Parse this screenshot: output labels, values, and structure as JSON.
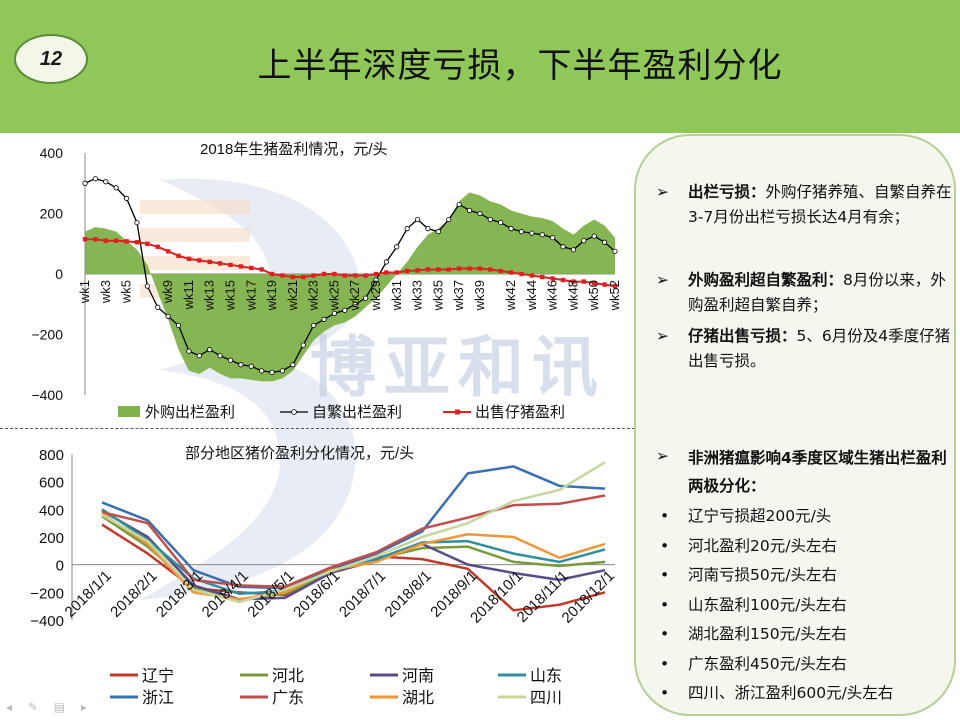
{
  "slide": {
    "page_number": "12",
    "title": "上半年深度亏损，下半年盈利分化"
  },
  "watermark": {
    "text": "博亚和讯"
  },
  "side_notes": {
    "top": [
      {
        "bold": "出栏亏损：",
        "text": "外购仔猪养殖、自繁自养在3-7月份出栏亏损长达4月有余；"
      },
      {
        "bold": "外购盈利超自繁盈利：",
        "text": "8月份以来，外购盈利超自繁自养；"
      },
      {
        "bold": "仔猪出售亏损：",
        "text": "5、6月份及4季度仔猪出售亏损。"
      }
    ],
    "bottom_header": "非洲猪瘟影响4季度区域生猪出栏盈利两极分化：",
    "bullets": [
      "辽宁亏损超200元/头",
      "河北盈利20元/头左右",
      "河南亏损50元/头左右",
      "山东盈利100元/头左右",
      "湖北盈利150元/头左右",
      "广东盈利450元/头左右",
      "四川、浙江盈利600元/头左右"
    ],
    "arrow_glyph": "➢",
    "bullet_glyph": "•"
  },
  "chart_data": [
    {
      "type": "line",
      "title": "2018年生猪盈利情况，元/头",
      "ylim": [
        -400,
        400
      ],
      "yticks": [
        400,
        200,
        0,
        -200,
        -400
      ],
      "x_labels": [
        "wk1",
        "wk3",
        "wk5",
        "wk9",
        "wk11",
        "wk13",
        "wk15",
        "wk17",
        "wk19",
        "wk21",
        "wk23",
        "wk25",
        "wk27",
        "wk29",
        "wk31",
        "wk33",
        "wk35",
        "wk37",
        "wk39",
        "wk42",
        "wk44",
        "wk46",
        "wk48",
        "wk50",
        "wk52"
      ],
      "x_labels_week": [
        1,
        3,
        5,
        9,
        11,
        13,
        15,
        17,
        19,
        21,
        23,
        25,
        27,
        29,
        31,
        33,
        35,
        37,
        39,
        42,
        44,
        46,
        48,
        50,
        52
      ],
      "legend": [
        "外购出栏盈利",
        "自繁出栏盈利",
        "出售仔猪盈利"
      ],
      "series": [
        {
          "name": "外购出栏盈利",
          "kind": "area",
          "color": "#7fb24a",
          "weeks": [
            1,
            2,
            3,
            4,
            5,
            6,
            7,
            8,
            9,
            10,
            11,
            12,
            13,
            14,
            15,
            16,
            17,
            18,
            19,
            20,
            21,
            22,
            23,
            24,
            25,
            26,
            27,
            28,
            29,
            30,
            31,
            32,
            33,
            34,
            35,
            36,
            37,
            38,
            39,
            40,
            41,
            42,
            43,
            44,
            45,
            46,
            47,
            48,
            49,
            50,
            51,
            52
          ],
          "values": [
            140,
            155,
            150,
            140,
            110,
            80,
            30,
            -60,
            -150,
            -250,
            -320,
            -330,
            -310,
            -330,
            -345,
            -345,
            -350,
            -355,
            -355,
            -345,
            -320,
            -270,
            -220,
            -190,
            -170,
            -160,
            -140,
            -110,
            -80,
            -40,
            0,
            40,
            90,
            130,
            150,
            180,
            240,
            270,
            260,
            240,
            230,
            210,
            200,
            190,
            185,
            175,
            150,
            130,
            160,
            180,
            160,
            120
          ]
        },
        {
          "name": "自繁出栏盈利",
          "kind": "line-marker",
          "color": "#000000",
          "weeks": [
            1,
            2,
            3,
            4,
            5,
            6,
            7,
            8,
            9,
            10,
            11,
            12,
            13,
            14,
            15,
            16,
            17,
            18,
            19,
            20,
            21,
            22,
            23,
            24,
            25,
            26,
            27,
            28,
            29,
            30,
            31,
            32,
            33,
            34,
            35,
            36,
            37,
            38,
            39,
            40,
            41,
            42,
            43,
            44,
            45,
            46,
            47,
            48,
            49,
            50,
            51,
            52
          ],
          "values": [
            300,
            315,
            305,
            285,
            250,
            170,
            -40,
            -110,
            -140,
            -170,
            -255,
            -270,
            -250,
            -270,
            -285,
            -300,
            -305,
            -320,
            -325,
            -320,
            -300,
            -235,
            -170,
            -150,
            -130,
            -120,
            -100,
            -80,
            -20,
            40,
            90,
            150,
            180,
            150,
            140,
            180,
            230,
            210,
            200,
            180,
            170,
            150,
            140,
            135,
            130,
            120,
            90,
            80,
            110,
            125,
            105,
            75
          ]
        },
        {
          "name": "出售仔猪盈利",
          "kind": "line-marker",
          "color": "#e02020",
          "weeks": [
            1,
            2,
            3,
            4,
            5,
            6,
            7,
            8,
            9,
            10,
            11,
            12,
            13,
            14,
            15,
            16,
            17,
            18,
            19,
            20,
            21,
            22,
            23,
            24,
            25,
            26,
            27,
            28,
            29,
            30,
            31,
            32,
            33,
            34,
            35,
            36,
            37,
            38,
            39,
            40,
            41,
            42,
            43,
            44,
            45,
            46,
            47,
            48,
            49,
            50,
            51,
            52
          ],
          "values": [
            115,
            115,
            110,
            110,
            108,
            105,
            100,
            90,
            75,
            60,
            50,
            45,
            40,
            35,
            30,
            25,
            20,
            15,
            0,
            -5,
            -10,
            -10,
            -5,
            0,
            0,
            -5,
            -5,
            -5,
            0,
            5,
            5,
            10,
            12,
            15,
            15,
            15,
            18,
            18,
            18,
            15,
            10,
            5,
            0,
            -5,
            -10,
            -15,
            -20,
            -25,
            -25,
            -30,
            -35,
            -40
          ]
        }
      ]
    },
    {
      "type": "line",
      "title": "部分地区猪价盈利分化情况，元/头",
      "ylim": [
        -400,
        800
      ],
      "yticks": [
        800,
        600,
        400,
        200,
        0,
        -200,
        -400
      ],
      "categories": [
        "2018/1/1",
        "2018/2/1",
        "2018/3/1",
        "2018/4/1",
        "2018/5/1",
        "2018/6/1",
        "2018/7/1",
        "2018/8/1",
        "2018/9/1",
        "2018/10/1",
        "2018/11/1",
        "2018/12/1"
      ],
      "legend": [
        "辽宁",
        "河北",
        "河南",
        "山东",
        "浙江",
        "广东",
        "湖北",
        "四川"
      ],
      "series": [
        {
          "name": "辽宁",
          "color": "#c0392b",
          "values": [
            290,
            80,
            -170,
            -200,
            -220,
            -40,
            60,
            40,
            -30,
            -330,
            -290,
            -200
          ]
        },
        {
          "name": "河北",
          "color": "#7a9a3a",
          "values": [
            350,
            130,
            -160,
            -250,
            -210,
            -60,
            40,
            120,
            130,
            20,
            -10,
            20
          ]
        },
        {
          "name": "河南",
          "color": "#5b4a8a",
          "values": [
            390,
            200,
            -150,
            -250,
            -240,
            -60,
            30,
            150,
            0,
            -60,
            -110,
            -40
          ]
        },
        {
          "name": "山东",
          "color": "#2e8ea0",
          "values": [
            400,
            180,
            -100,
            -210,
            -190,
            -40,
            40,
            160,
            170,
            80,
            20,
            110
          ]
        },
        {
          "name": "浙江",
          "color": "#3a6fb0",
          "values": [
            450,
            320,
            -40,
            -160,
            -170,
            -30,
            80,
            240,
            660,
            710,
            570,
            550
          ]
        },
        {
          "name": "广东",
          "color": "#c0504d",
          "values": [
            380,
            300,
            -110,
            -150,
            -160,
            -20,
            90,
            260,
            340,
            430,
            440,
            500
          ]
        },
        {
          "name": "湖北",
          "color": "#f0973a",
          "values": [
            370,
            150,
            -200,
            -250,
            -200,
            -40,
            20,
            150,
            220,
            200,
            50,
            150
          ]
        },
        {
          "name": "四川",
          "color": "#c4d89e",
          "values": [
            360,
            170,
            -180,
            -270,
            -180,
            -50,
            60,
            200,
            300,
            460,
            540,
            740
          ]
        }
      ]
    }
  ]
}
